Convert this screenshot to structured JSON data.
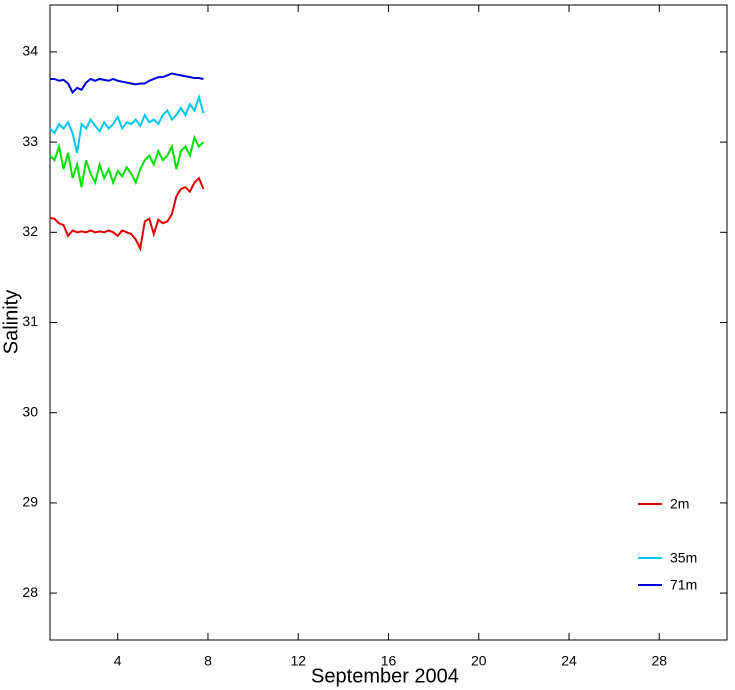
{
  "chart_data": {
    "type": "line",
    "xlabel": "September 2004",
    "ylabel": "Salinity",
    "x": [
      1,
      1.2,
      1.4,
      1.6,
      1.8,
      2,
      2.2,
      2.4,
      2.6,
      2.8,
      3,
      3.2,
      3.4,
      3.6,
      3.8,
      4,
      4.2,
      4.4,
      4.6,
      4.8,
      5,
      5.2,
      5.4,
      5.6,
      5.8,
      6,
      6.2,
      6.4,
      6.6,
      6.8,
      7,
      7.2,
      7.4,
      7.6,
      7.8
    ],
    "series": [
      {
        "name": "2m",
        "color": "#e00000",
        "values": [
          32.16,
          32.15,
          32.1,
          32.08,
          31.96,
          32.02,
          32.0,
          32.01,
          32.0,
          32.02,
          32.0,
          32.01,
          32.0,
          32.02,
          32.0,
          31.96,
          32.02,
          32.0,
          31.98,
          31.92,
          31.82,
          32.12,
          32.15,
          31.98,
          32.14,
          32.1,
          32.12,
          32.2,
          32.4,
          32.48,
          32.5,
          32.45,
          32.55,
          32.6,
          32.48
        ]
      },
      {
        "color": "#00e000",
        "values": [
          32.85,
          32.8,
          32.95,
          32.7,
          32.88,
          32.6,
          32.75,
          32.5,
          32.8,
          32.65,
          32.55,
          32.75,
          32.6,
          32.7,
          32.55,
          32.68,
          32.62,
          32.72,
          32.65,
          32.55,
          32.7,
          32.8,
          32.85,
          32.75,
          32.9,
          32.8,
          32.85,
          32.95,
          32.7,
          32.9,
          32.95,
          32.85,
          33.05,
          32.95,
          33.0
        ]
      },
      {
        "name": "35m",
        "color": "#00c8f0",
        "values": [
          33.15,
          33.1,
          33.2,
          33.15,
          33.22,
          33.1,
          32.88,
          33.2,
          33.15,
          33.25,
          33.18,
          33.12,
          33.22,
          33.15,
          33.2,
          33.28,
          33.15,
          33.22,
          33.2,
          33.25,
          33.18,
          33.3,
          33.22,
          33.25,
          33.2,
          33.3,
          33.35,
          33.25,
          33.3,
          33.38,
          33.3,
          33.42,
          33.35,
          33.5,
          33.32
        ]
      },
      {
        "name": "71m",
        "color": "#0000d8",
        "values": [
          33.7,
          33.7,
          33.68,
          33.69,
          33.65,
          33.55,
          33.6,
          33.58,
          33.66,
          33.7,
          33.68,
          33.7,
          33.69,
          33.68,
          33.7,
          33.68,
          33.67,
          33.66,
          33.65,
          33.64,
          33.65,
          33.65,
          33.68,
          33.7,
          33.72,
          33.72,
          33.74,
          33.76,
          33.75,
          33.74,
          33.73,
          33.72,
          33.71,
          33.71,
          33.7
        ]
      }
    ],
    "xlim": [
      1,
      31
    ],
    "xticks": [
      4,
      8,
      12,
      16,
      20,
      24,
      28
    ],
    "ylim": [
      27.48,
      34.52
    ],
    "yticks": [
      28,
      29,
      30,
      31,
      32,
      33,
      34
    ],
    "legend": "lower right"
  }
}
